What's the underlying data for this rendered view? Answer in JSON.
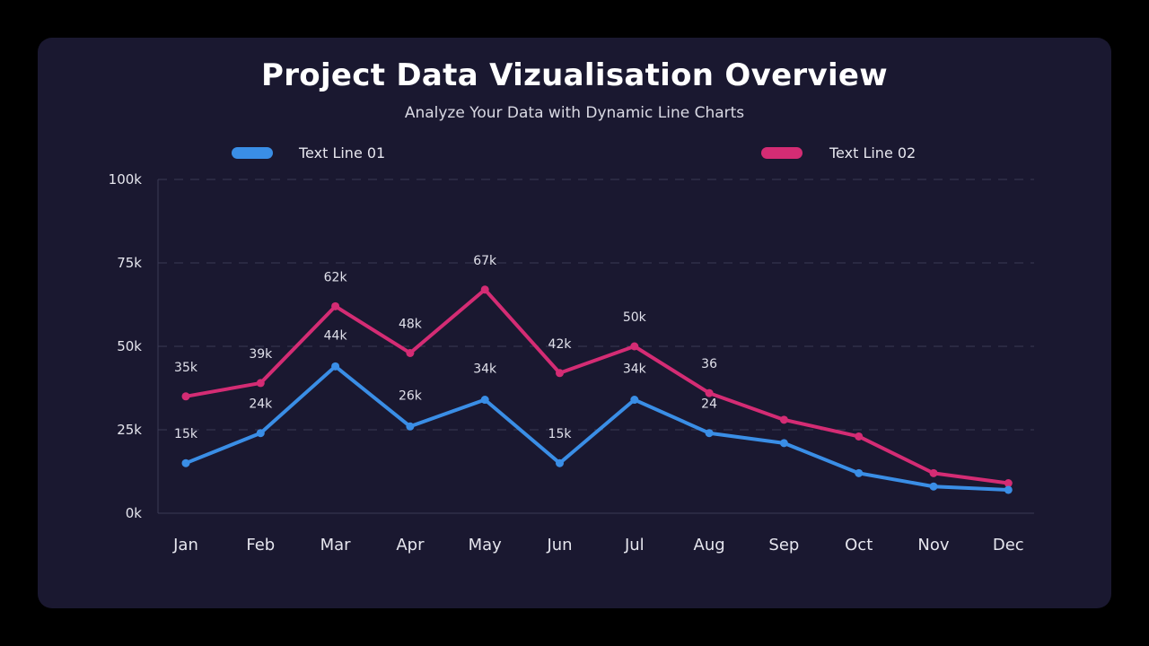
{
  "header": {
    "title": "Project Data Vizualisation Overview",
    "subtitle": "Analyze Your Data with Dynamic Line Charts"
  },
  "colors": {
    "background": "#000000",
    "panel": "#1a1830",
    "series1": "#3a8ee6",
    "series2": "#d42c74"
  },
  "chart_data": {
    "type": "line",
    "title": "Project Data Vizualisation Overview",
    "subtitle": "Analyze Your Data with Dynamic Line Charts",
    "xlabel": "",
    "ylabel": "",
    "ylim": [
      0,
      100
    ],
    "grid": true,
    "legend_position": "top",
    "categories": [
      "Jan",
      "Feb",
      "Mar",
      "Apr",
      "May",
      "Jun",
      "Jul",
      "Aug",
      "Sep",
      "Oct",
      "Nov",
      "Dec"
    ],
    "y_ticks": [
      {
        "value": 0,
        "label": "0k"
      },
      {
        "value": 25,
        "label": "25k"
      },
      {
        "value": 50,
        "label": "50k"
      },
      {
        "value": 75,
        "label": "75k"
      },
      {
        "value": 100,
        "label": "100k"
      }
    ],
    "series": [
      {
        "name": "Text Line 01",
        "color": "#3a8ee6",
        "values": [
          15,
          24,
          44,
          26,
          34,
          15,
          34,
          24,
          21,
          12,
          8,
          7
        ],
        "labels": [
          "15k",
          "24k",
          "44k",
          "26k",
          "34k",
          "15k",
          "34k",
          "24",
          "",
          "",
          "",
          ""
        ]
      },
      {
        "name": "Text Line 02",
        "color": "#d42c74",
        "values": [
          35,
          39,
          62,
          48,
          67,
          42,
          50,
          36,
          28,
          23,
          12,
          9
        ],
        "labels": [
          "35k",
          "39k",
          "62k",
          "48k",
          "67k",
          "42k",
          "50k",
          "36",
          "",
          "",
          "",
          ""
        ]
      }
    ]
  }
}
